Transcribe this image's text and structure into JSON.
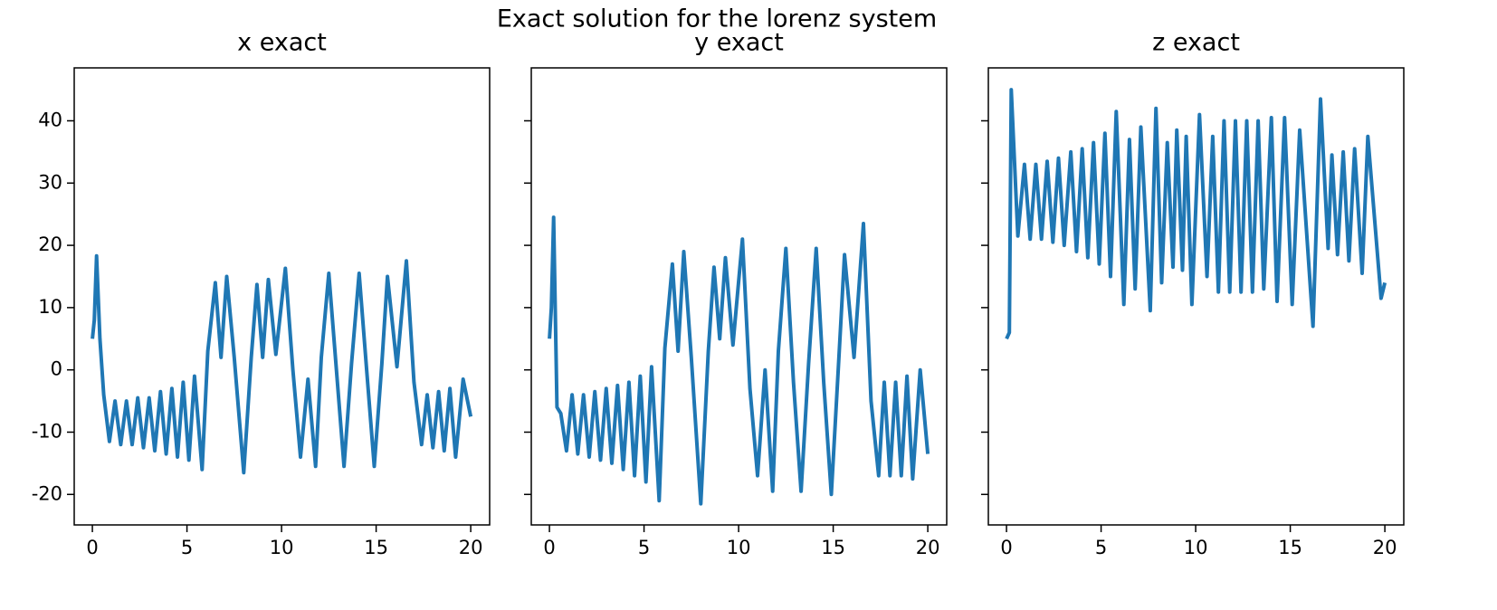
{
  "title": "Exact solution for the lorenz system",
  "chart_data": [
    {
      "type": "line",
      "title": "x exact",
      "color": "#1f77b4",
      "xlim": [
        -0.96,
        21
      ],
      "ylim": [
        -24.9,
        48.5
      ],
      "xticks": [
        0,
        5,
        10,
        15,
        20
      ],
      "yticks": [
        -20,
        -10,
        0,
        10,
        20,
        30,
        40
      ],
      "show_ytick_labels": true,
      "x": [
        0,
        0.1,
        0.22,
        0.4,
        0.6,
        0.9,
        1.2,
        1.5,
        1.8,
        2.1,
        2.4,
        2.7,
        3.0,
        3.3,
        3.6,
        3.9,
        4.2,
        4.5,
        4.8,
        5.1,
        5.4,
        5.8,
        6.1,
        6.5,
        6.8,
        7.1,
        7.5,
        8.0,
        8.4,
        8.7,
        9.0,
        9.3,
        9.7,
        10.2,
        10.6,
        11.0,
        11.4,
        11.8,
        12.1,
        12.5,
        12.9,
        13.3,
        13.7,
        14.1,
        14.5,
        14.9,
        15.3,
        15.6,
        16.1,
        16.6,
        17.0,
        17.4,
        17.7,
        18.0,
        18.3,
        18.6,
        18.9,
        19.2,
        19.6,
        20
      ],
      "values": [
        5,
        8,
        18.3,
        5,
        -4,
        -11.5,
        -5,
        -12,
        -5,
        -12,
        -4.5,
        -12.5,
        -4.5,
        -13,
        -3.5,
        -13.5,
        -3,
        -14,
        -2,
        -14.5,
        -1,
        -16,
        3,
        14,
        2,
        15,
        2,
        -16.5,
        2,
        13.7,
        2,
        14.5,
        2.5,
        16.3,
        0,
        -14,
        -1.5,
        -15.5,
        2,
        15.5,
        0,
        -15.5,
        1,
        15.5,
        0,
        -15.5,
        1,
        15,
        0.5,
        17.5,
        -2,
        -12,
        -4,
        -12.5,
        -3.5,
        -13,
        -3,
        -14,
        -1.5,
        -7.5
      ]
    },
    {
      "type": "line",
      "title": "y exact",
      "color": "#1f77b4",
      "xlim": [
        -0.96,
        21
      ],
      "ylim": [
        -24.9,
        48.5
      ],
      "xticks": [
        0,
        5,
        10,
        15,
        20
      ],
      "yticks": [
        -20,
        -10,
        0,
        10,
        20,
        30,
        40
      ],
      "show_ytick_labels": false,
      "x": [
        0,
        0.1,
        0.22,
        0.4,
        0.6,
        0.9,
        1.2,
        1.5,
        1.8,
        2.1,
        2.4,
        2.7,
        3.0,
        3.3,
        3.6,
        3.9,
        4.2,
        4.5,
        4.8,
        5.1,
        5.4,
        5.8,
        6.1,
        6.5,
        6.8,
        7.1,
        7.5,
        8.0,
        8.4,
        8.7,
        9.0,
        9.3,
        9.7,
        10.2,
        10.6,
        11.0,
        11.4,
        11.8,
        12.1,
        12.5,
        12.9,
        13.3,
        13.7,
        14.1,
        14.5,
        14.9,
        15.3,
        15.6,
        16.1,
        16.6,
        17.0,
        17.4,
        17.7,
        18.0,
        18.3,
        18.6,
        18.9,
        19.2,
        19.6,
        20
      ],
      "values": [
        5,
        10,
        24.5,
        -6,
        -7,
        -13,
        -4,
        -13.5,
        -4,
        -14,
        -3.5,
        -14.5,
        -3,
        -15,
        -2.5,
        -16,
        -2,
        -17,
        -1,
        -18,
        0.5,
        -21,
        3.5,
        17,
        3,
        19,
        2,
        -21.5,
        3,
        16.5,
        5,
        18,
        4,
        21,
        -3,
        -17,
        0,
        -19.5,
        3,
        19.5,
        -2,
        -19.5,
        1,
        19.5,
        -2,
        -20,
        2,
        18.5,
        2,
        23.5,
        -5,
        -17,
        -2,
        -17,
        -2,
        -17,
        -1,
        -17.5,
        0,
        -13.5
      ]
    },
    {
      "type": "line",
      "title": "z exact",
      "color": "#1f77b4",
      "xlim": [
        -0.96,
        21
      ],
      "ylim": [
        -24.9,
        48.5
      ],
      "xticks": [
        0,
        5,
        10,
        15,
        20
      ],
      "yticks": [
        -20,
        -10,
        0,
        10,
        20,
        30,
        40
      ],
      "show_ytick_labels": false,
      "x": [
        0,
        0.15,
        0.25,
        0.6,
        0.95,
        1.25,
        1.55,
        1.85,
        2.15,
        2.45,
        2.75,
        3.05,
        3.4,
        3.7,
        4.0,
        4.3,
        4.6,
        4.9,
        5.2,
        5.5,
        5.8,
        6.2,
        6.5,
        6.8,
        7.1,
        7.6,
        7.9,
        8.2,
        8.5,
        8.8,
        9.0,
        9.3,
        9.5,
        9.8,
        10.2,
        10.6,
        10.9,
        11.2,
        11.5,
        11.8,
        12.1,
        12.4,
        12.7,
        13.0,
        13.3,
        13.6,
        14.0,
        14.3,
        14.7,
        15.1,
        15.5,
        16.2,
        16.6,
        17.0,
        17.2,
        17.5,
        17.8,
        18.1,
        18.4,
        18.8,
        19.1,
        19.8,
        20
      ],
      "values": [
        5,
        6,
        45,
        21.5,
        33,
        21,
        33,
        21,
        33.5,
        20.5,
        34,
        20,
        35,
        19,
        35.5,
        18,
        36.5,
        17,
        38,
        15,
        41.5,
        10.5,
        37,
        13,
        39,
        9.5,
        42,
        14,
        36.5,
        16.5,
        38.5,
        16,
        37.5,
        10.5,
        41,
        15,
        37.5,
        12.5,
        40,
        12.5,
        40,
        12.5,
        40,
        12.5,
        40,
        13,
        40.5,
        11,
        40.5,
        10.5,
        38.5,
        7,
        43.5,
        19.5,
        34.5,
        18.5,
        35,
        17.5,
        35.5,
        15.5,
        37.5,
        11.5,
        14
      ]
    }
  ]
}
